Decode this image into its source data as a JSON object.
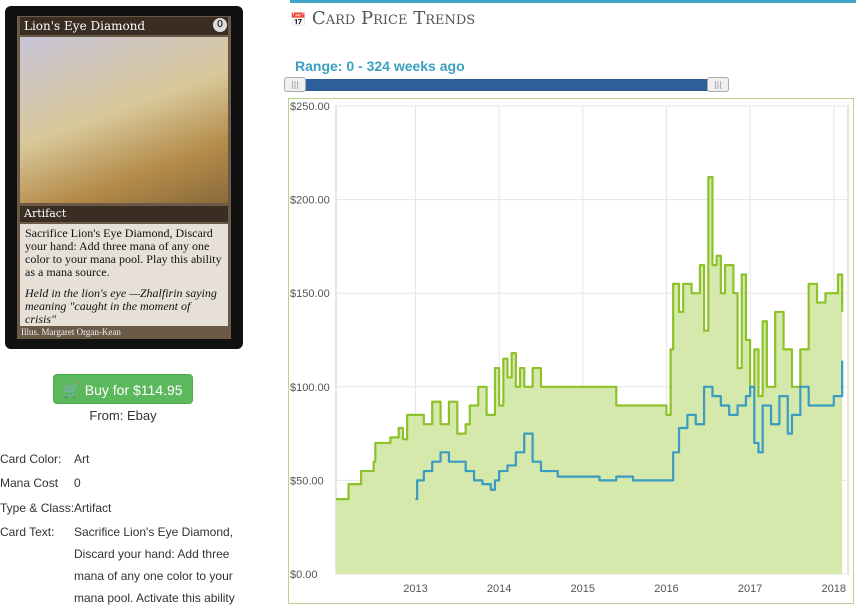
{
  "card": {
    "name": "Lion's Eye Diamond",
    "cost": "0",
    "type_line": "Artifact",
    "rules": "Sacrifice Lion's Eye Diamond, Discard your hand: Add three mana of any one color to your mana pool. Play this ability as a mana source.",
    "flavor": "Held in the lion's eye —Zhalfirin saying meaning \"caught in the moment of crisis\"",
    "artist": "Illus. Margaret Organ-Kean"
  },
  "buy": {
    "label": "Buy for $114.95",
    "from": "From: Ebay"
  },
  "info": [
    {
      "key": "Card Color:",
      "value": "Art"
    },
    {
      "key": "Mana Cost",
      "value": "0"
    },
    {
      "key": "Type & Class:",
      "value": "Artifact"
    },
    {
      "key": "Card Text:",
      "value": "Sacrifice Lion's Eye Diamond, Discard your hand: Add three mana of any one color to your mana pool. Activate this ability"
    }
  ],
  "panel": {
    "title": "Card Price Trends",
    "range_label": "Range: 0 - 324 weeks ago",
    "icon": "calendar-icon"
  },
  "colors": {
    "accent": "#3fa7c7",
    "green": "#8dc22a",
    "green_fill": "#d4e8a8",
    "blue": "#3a9cc0",
    "buy": "#5cb85c"
  },
  "chart_data": {
    "type": "line",
    "title": "",
    "xlabel": "",
    "ylabel": "",
    "ylim": [
      0,
      250
    ],
    "xlim": [
      2012.05,
      2018.17
    ],
    "yticks": [
      "$0.00",
      "$50.00",
      "$100.00",
      "$150.00",
      "$200.00",
      "$250.00"
    ],
    "xticks": [
      2013,
      2014,
      2015,
      2016,
      2017,
      2018
    ],
    "grid": true,
    "series": [
      {
        "name": "",
        "color": "#8dc22a",
        "fill": true,
        "x": [
          2012.05,
          2012.2,
          2012.35,
          2012.5,
          2012.52,
          2012.7,
          2012.8,
          2012.85,
          2012.9,
          2013.0,
          2013.1,
          2013.2,
          2013.3,
          2013.4,
          2013.5,
          2013.6,
          2013.65,
          2013.75,
          2013.85,
          2013.95,
          2014.0,
          2014.05,
          2014.1,
          2014.15,
          2014.2,
          2014.25,
          2014.3,
          2014.4,
          2014.5,
          2014.6,
          2014.7,
          2014.8,
          2014.9,
          2015.0,
          2015.2,
          2015.4,
          2015.6,
          2015.75,
          2015.9,
          2016.0,
          2016.05,
          2016.08,
          2016.15,
          2016.2,
          2016.3,
          2016.4,
          2016.45,
          2016.5,
          2016.55,
          2016.6,
          2016.65,
          2016.7,
          2016.8,
          2016.85,
          2016.9,
          2016.95,
          2017.0,
          2017.05,
          2017.1,
          2017.15,
          2017.2,
          2017.3,
          2017.4,
          2017.5,
          2017.6,
          2017.7,
          2017.8,
          2017.9,
          2018.0,
          2018.05,
          2018.1
        ],
        "y": [
          40,
          48,
          55,
          60,
          70,
          73,
          78,
          72,
          85,
          85,
          80,
          92,
          80,
          92,
          75,
          80,
          90,
          100,
          85,
          110,
          90,
          115,
          105,
          118,
          100,
          110,
          100,
          110,
          100,
          100,
          100,
          100,
          100,
          100,
          100,
          90,
          90,
          90,
          90,
          85,
          120,
          155,
          140,
          155,
          150,
          165,
          130,
          212,
          165,
          170,
          150,
          165,
          150,
          110,
          160,
          125,
          100,
          120,
          95,
          135,
          100,
          140,
          120,
          100,
          120,
          155,
          145,
          150,
          150,
          160,
          140
        ]
      },
      {
        "name": "",
        "color": "#3a9cc0",
        "fill": false,
        "x": [
          2013.0,
          2013.02,
          2013.1,
          2013.2,
          2013.3,
          2013.4,
          2013.5,
          2013.6,
          2013.7,
          2013.8,
          2013.9,
          2013.95,
          2014.0,
          2014.1,
          2014.2,
          2014.3,
          2014.4,
          2014.5,
          2014.6,
          2014.7,
          2014.8,
          2014.9,
          2015.0,
          2015.2,
          2015.4,
          2015.6,
          2015.8,
          2016.0,
          2016.08,
          2016.15,
          2016.25,
          2016.35,
          2016.45,
          2016.55,
          2016.65,
          2016.75,
          2016.85,
          2016.95,
          2017.0,
          2017.05,
          2017.1,
          2017.15,
          2017.25,
          2017.35,
          2017.45,
          2017.5,
          2017.6,
          2017.7,
          2017.8,
          2017.9,
          2018.0,
          2018.1
        ],
        "y": [
          40,
          50,
          55,
          60,
          65,
          60,
          60,
          55,
          50,
          48,
          45,
          50,
          55,
          58,
          65,
          75,
          60,
          55,
          55,
          52,
          52,
          52,
          52,
          50,
          52,
          50,
          50,
          50,
          65,
          78,
          85,
          80,
          100,
          95,
          90,
          85,
          90,
          95,
          100,
          70,
          65,
          90,
          80,
          95,
          75,
          85,
          100,
          90,
          90,
          90,
          95,
          114
        ]
      }
    ]
  }
}
